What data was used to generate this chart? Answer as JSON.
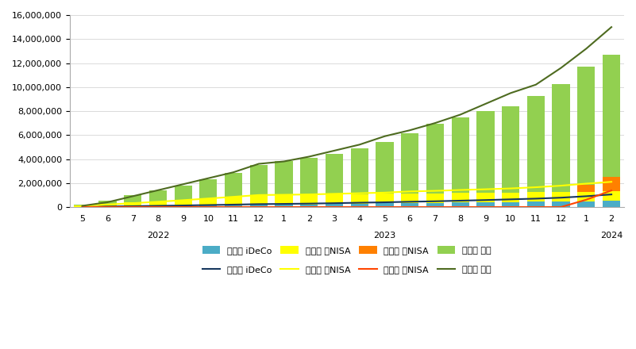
{
  "months": [
    "5",
    "6",
    "7",
    "8",
    "9",
    "10",
    "11",
    "12",
    "1",
    "2",
    "3",
    "4",
    "5",
    "6",
    "7",
    "8",
    "9",
    "10",
    "11",
    "12",
    "1",
    "2"
  ],
  "year_labels": [
    {
      "label": "2022",
      "index": 3
    },
    {
      "label": "2023",
      "index": 12
    },
    {
      "label": "2024",
      "index": 21
    }
  ],
  "inv_ideco": [
    23000,
    46000,
    69000,
    92000,
    115000,
    138000,
    161000,
    184000,
    207000,
    230000,
    253000,
    276000,
    299000,
    322000,
    345000,
    368000,
    391000,
    414000,
    437000,
    460000,
    483000,
    506000
  ],
  "inv_old_nisa": [
    100000,
    200000,
    300000,
    400000,
    500000,
    600000,
    700000,
    800000,
    800000,
    800000,
    800000,
    800000,
    800000,
    800000,
    800000,
    800000,
    800000,
    800000,
    800000,
    800000,
    800000,
    800000
  ],
  "inv_new_nisa": [
    0,
    0,
    0,
    0,
    0,
    0,
    0,
    0,
    0,
    0,
    0,
    0,
    0,
    0,
    0,
    0,
    0,
    0,
    0,
    0,
    600000,
    1200000
  ],
  "inv_tokutei": [
    100000,
    300000,
    600000,
    900000,
    1200000,
    1600000,
    2000000,
    2500000,
    2800000,
    3100000,
    3400000,
    3800000,
    4300000,
    5000000,
    5800000,
    6300000,
    6800000,
    7200000,
    8000000,
    9000000,
    9800000,
    10200000
  ],
  "eval_ideco": [
    23000,
    47000,
    72000,
    100000,
    130000,
    165000,
    200000,
    240000,
    260000,
    285000,
    320000,
    360000,
    395000,
    440000,
    480000,
    530000,
    580000,
    640000,
    700000,
    780000,
    900000,
    1050000
  ],
  "eval_old_nisa": [
    100000,
    210000,
    320000,
    440000,
    570000,
    710000,
    850000,
    1000000,
    1020000,
    1050000,
    1100000,
    1150000,
    1200000,
    1300000,
    1350000,
    1420000,
    1480000,
    1550000,
    1650000,
    1780000,
    1950000,
    2100000
  ],
  "eval_new_nisa": [
    0,
    0,
    0,
    0,
    0,
    0,
    0,
    0,
    0,
    0,
    0,
    0,
    0,
    0,
    0,
    0,
    0,
    0,
    0,
    0,
    610000,
    1380000
  ],
  "eval_tokutei": [
    100000,
    400000,
    900000,
    1400000,
    1900000,
    2400000,
    2900000,
    3600000,
    3800000,
    4200000,
    4700000,
    5200000,
    5900000,
    6400000,
    7000000,
    7700000,
    8600000,
    9500000,
    10200000,
    11600000,
    13200000,
    15000000
  ],
  "bar_color_ideco": "#4BACC6",
  "bar_color_old_nisa": "#FFFF00",
  "bar_color_new_nisa": "#FF8000",
  "bar_color_tokutei": "#92D050",
  "line_color_ideco": "#17375E",
  "line_color_old_nisa": "#FFFF00",
  "line_color_new_nisa": "#FF4500",
  "line_color_tokutei": "#4E6B20",
  "ylim": [
    0,
    16000000
  ],
  "ytick_step": 2000000,
  "background_color": "#FFFFFF",
  "legend1": [
    "投資額 iDeCo",
    "投資額 旧NISA",
    "投資額 新NISA",
    "投資額 特定"
  ],
  "legend2": [
    "評価額 iDeCo",
    "評価額 旧NISA",
    "評価額 新NISA",
    "評価額 特定"
  ]
}
